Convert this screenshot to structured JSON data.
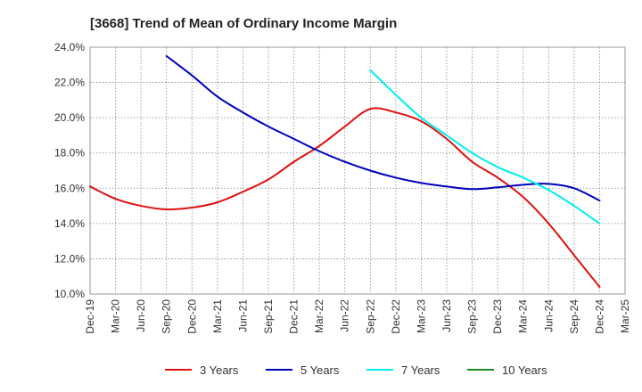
{
  "chart_data": {
    "type": "line",
    "title": "[3668]  Trend of Mean of Ordinary Income Margin",
    "xlabel": "",
    "ylabel": "",
    "ylim": [
      10.0,
      24.0
    ],
    "y_ticks": [
      "10.0%",
      "12.0%",
      "14.0%",
      "16.0%",
      "18.0%",
      "20.0%",
      "22.0%",
      "24.0%"
    ],
    "x_ticks": [
      "Dec-19",
      "Mar-20",
      "Jun-20",
      "Sep-20",
      "Dec-20",
      "Mar-21",
      "Jun-21",
      "Sep-21",
      "Dec-21",
      "Mar-22",
      "Jun-22",
      "Sep-22",
      "Dec-22",
      "Mar-23",
      "Jun-23",
      "Sep-23",
      "Dec-23",
      "Mar-24",
      "Jun-24",
      "Sep-24",
      "Dec-24",
      "Mar-25"
    ],
    "grid": true,
    "legend_position": "bottom",
    "series": [
      {
        "name": "3 Years",
        "color": "#dd1111",
        "values": [
          16.1,
          15.4,
          15.0,
          14.8,
          14.9,
          15.2,
          15.8,
          16.5,
          17.5,
          18.4,
          19.5,
          20.5,
          20.3,
          19.8,
          18.8,
          17.5,
          16.6,
          15.5,
          14.0,
          12.2,
          10.4
        ]
      },
      {
        "name": "5 Years",
        "color": "#0000bb",
        "values": [
          null,
          null,
          null,
          23.5,
          22.4,
          21.2,
          20.3,
          19.5,
          18.8,
          18.1,
          17.5,
          17.0,
          16.6,
          16.3,
          16.1,
          15.95,
          16.05,
          16.2,
          16.25,
          16.0,
          15.3
        ]
      },
      {
        "name": "7 Years",
        "color": "#00eeee",
        "values": [
          null,
          null,
          null,
          null,
          null,
          null,
          null,
          null,
          null,
          null,
          null,
          22.7,
          21.3,
          20.0,
          19.0,
          18.0,
          17.2,
          16.6,
          15.9,
          15.0,
          14.0
        ]
      },
      {
        "name": "10 Years",
        "color": "#228822",
        "values": []
      }
    ]
  }
}
